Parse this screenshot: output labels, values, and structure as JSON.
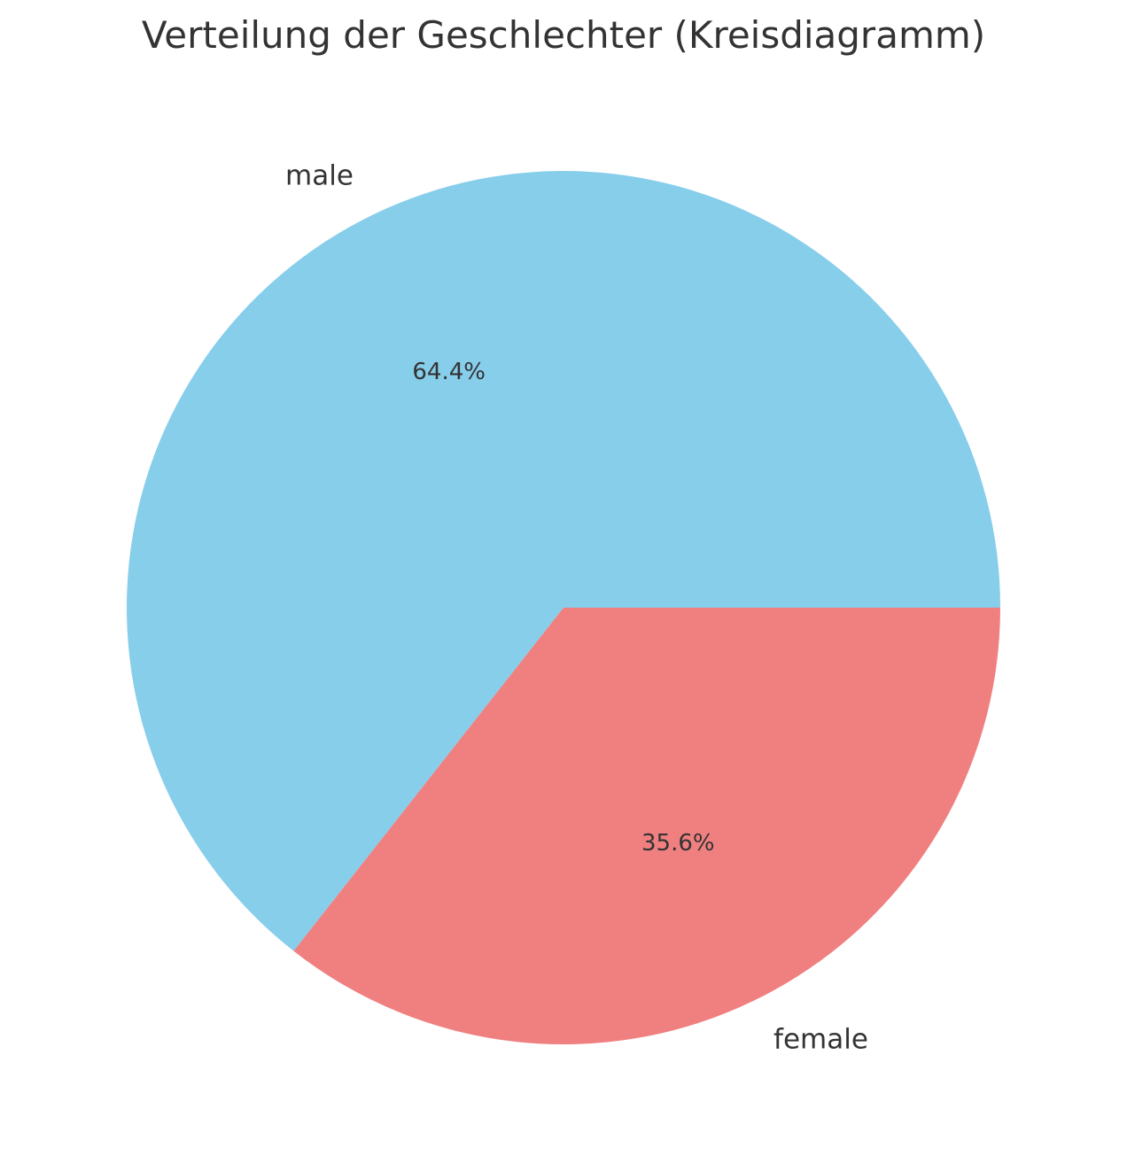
{
  "chart_data": {
    "type": "pie",
    "title": "Verteilung der Geschlechter (Kreisdiagramm)",
    "categories": [
      "male",
      "female"
    ],
    "values": [
      64.4,
      35.6
    ],
    "value_labels": [
      "64.4%",
      "35.6%"
    ],
    "colors": [
      "#87CEEB",
      "#F08080"
    ],
    "start_angle_deg": 0,
    "direction": "counterclockwise",
    "legend": "none"
  }
}
